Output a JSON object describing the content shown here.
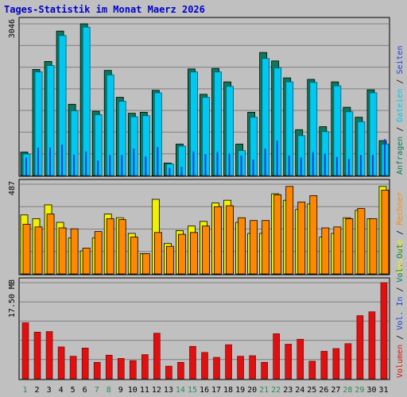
{
  "title": "Tages-Statistik im Monat Maerz 2026",
  "colors": {
    "background": "#c0c0c0",
    "title": "#0000cc",
    "grid": "#808080",
    "anfragen": "#0a7a5c",
    "dateien": "#00c8f0",
    "seiten": "#1a3fd8",
    "besuche": "#f0f000",
    "rechner": "#ff8800",
    "volumen": "#e01010",
    "day_weekday": "#000000",
    "day_weekend": "#2e8b57"
  },
  "chart_data": [
    {
      "type": "bar",
      "name": "top",
      "max_label": "3046",
      "ylim": [
        0,
        3046
      ],
      "categories": [
        "1",
        "2",
        "3",
        "4",
        "5",
        "6",
        "7",
        "8",
        "9",
        "10",
        "11",
        "12",
        "13",
        "14",
        "15",
        "16",
        "17",
        "18",
        "19",
        "20",
        "21",
        "22",
        "23",
        "24",
        "25",
        "26",
        "27",
        "28",
        "29",
        "30",
        "31"
      ],
      "legend": [
        {
          "text": "Anfragen",
          "color_key": "anfragen"
        },
        {
          "text": "Dateien",
          "color_key": "dateien"
        },
        {
          "text": "Seiten",
          "color_key": "seiten"
        }
      ],
      "series": [
        {
          "name": "Anfragen",
          "color_key": "anfragen",
          "values": [
            470,
            2130,
            2290,
            2900,
            1430,
            3046,
            1290,
            2110,
            1570,
            1250,
            1270,
            1710,
            250,
            630,
            2140,
            1630,
            2150,
            1880,
            630,
            1270,
            2470,
            2300,
            1960,
            920,
            1930,
            980,
            1880,
            1370,
            1170,
            1720,
            700
          ]
        },
        {
          "name": "Dateien",
          "color_key": "dateien",
          "values": [
            430,
            2080,
            2210,
            2810,
            1300,
            2980,
            1220,
            2020,
            1490,
            1180,
            1200,
            1660,
            230,
            590,
            2080,
            1570,
            2080,
            1790,
            500,
            1170,
            2350,
            2160,
            1880,
            800,
            1870,
            880,
            1800,
            1280,
            1080,
            1660,
            630
          ]
        },
        {
          "name": "Seiten",
          "color_key": "seiten",
          "values": [
            360,
            560,
            560,
            620,
            420,
            480,
            300,
            410,
            410,
            540,
            380,
            570,
            150,
            170,
            480,
            430,
            470,
            440,
            400,
            320,
            540,
            700,
            400,
            360,
            470,
            440,
            370,
            330,
            410,
            410,
            730
          ]
        }
      ]
    },
    {
      "type": "bar",
      "name": "middle",
      "max_label": "487",
      "ylim": [
        0,
        487
      ],
      "categories": [
        "1",
        "2",
        "3",
        "4",
        "5",
        "6",
        "7",
        "8",
        "9",
        "10",
        "11",
        "12",
        "13",
        "14",
        "15",
        "16",
        "17",
        "18",
        "19",
        "20",
        "21",
        "22",
        "23",
        "24",
        "25",
        "26",
        "27",
        "28",
        "29",
        "30",
        "31"
      ],
      "legend": [
        {
          "text": "Besuche",
          "color_key": "besuche"
        },
        {
          "text": "Rechner",
          "color_key": "rechner"
        }
      ],
      "series": [
        {
          "name": "Besuche",
          "color_key": "besuche",
          "values": [
            320,
            300,
            375,
            280,
            195,
            125,
            195,
            325,
            305,
            220,
            110,
            405,
            165,
            235,
            260,
            285,
            385,
            400,
            280,
            220,
            220,
            435,
            400,
            350,
            380,
            200,
            220,
            305,
            345,
            300,
            475
          ]
        },
        {
          "name": "Rechner",
          "color_key": "rechner",
          "values": [
            270,
            255,
            325,
            250,
            245,
            140,
            230,
            300,
            295,
            200,
            110,
            225,
            150,
            215,
            225,
            260,
            365,
            370,
            305,
            290,
            290,
            430,
            475,
            390,
            425,
            250,
            255,
            300,
            355,
            300,
            455
          ]
        }
      ]
    },
    {
      "type": "bar",
      "name": "bottom",
      "max_label": "17.50 MB",
      "ylim": [
        0,
        17.5
      ],
      "categories": [
        "1",
        "2",
        "3",
        "4",
        "5",
        "6",
        "7",
        "8",
        "9",
        "10",
        "11",
        "12",
        "13",
        "14",
        "15",
        "16",
        "17",
        "18",
        "19",
        "20",
        "21",
        "22",
        "23",
        "24",
        "25",
        "26",
        "27",
        "28",
        "29",
        "30",
        "31"
      ],
      "legend": [
        {
          "text": "Volumen",
          "color_key": "volumen"
        },
        {
          "text": "Vol. In",
          "color_key": "seiten"
        },
        {
          "text": "Vol. Out",
          "color_key": "anfragen"
        }
      ],
      "series": [
        {
          "name": "Volumen",
          "color_key": "volumen",
          "values": [
            10.2,
            8.5,
            8.6,
            5.8,
            4.1,
            5.6,
            3.0,
            4.3,
            3.7,
            3.3,
            4.4,
            8.3,
            2.3,
            3.0,
            5.9,
            4.8,
            3.9,
            6.2,
            4.1,
            4.2,
            3.0,
            8.2,
            6.3,
            7.2,
            3.2,
            5.0,
            5.5,
            6.4,
            11.5,
            12.2,
            17.5
          ]
        }
      ]
    }
  ],
  "weekend_days": [
    1,
    7,
    8,
    14,
    15,
    21,
    22,
    28,
    29
  ]
}
